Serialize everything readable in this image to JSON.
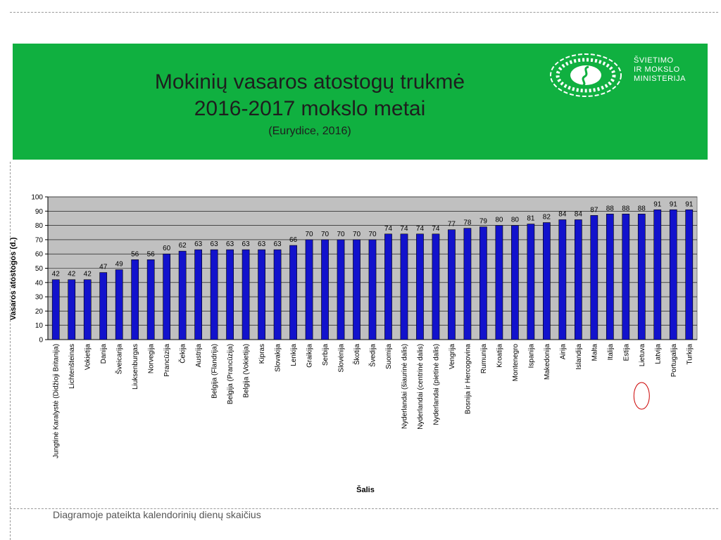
{
  "slide": {
    "title_line1": "Mokinių vasaros atostogų trukmė",
    "title_line2": "2016-2017 mokslo metai",
    "subtitle": "(Eurydice, 2016)",
    "footnote": "Diagramoje  pateikta kalendorinių dienų skaičius",
    "logo_lines": [
      "ŠVIETIMO",
      "IR MOKSLO",
      "MINISTERIJA"
    ],
    "banner_color": "#10b040"
  },
  "chart_data": {
    "type": "bar",
    "title": "",
    "xlabel": "Šalis",
    "ylabel": "Vasaros atostogos (d.)",
    "ylim": [
      0,
      100
    ],
    "yticks": [
      0,
      10,
      20,
      30,
      40,
      50,
      60,
      70,
      80,
      90,
      100
    ],
    "grid": true,
    "bar_color": "#1212cc",
    "plot_background": "#c0c0c0",
    "highlight_category": "Lietuva",
    "highlight_color": "#cc0000",
    "categories": [
      "Jungtinė Karalystė (Didžioji Britanija)",
      "Lichtenšteinas",
      "Vokietija",
      "Danija",
      "Šveicarija",
      "Liuksenburgas",
      "Norvegija",
      "Prancūzija",
      "Čekija",
      "Austrija",
      "Belgija (Flandrija)",
      "Belgija (Prancūzija)",
      "Belgija (Vokietija)",
      "Kipras",
      "Slovakija",
      "Lenkija",
      "Graikija",
      "Serbija",
      "Slovėnija",
      "Škotija",
      "Švedija",
      "Suomija",
      "Nyderlandai (šiaurinė dalis)",
      "Nyderlandai (centrinė dalis)",
      "Nyderlandai (pietinė dalis)",
      "Vengrija",
      "Bosnija ir Hercogovina",
      "Rumunija",
      "Kroatija",
      "Montenegro",
      "Ispanija",
      "Makedonija",
      "Airija",
      "Islandija",
      "Malta",
      "Italija",
      "Estija",
      "Lietuva",
      "Latvija",
      "Portugalija",
      "Turkija"
    ],
    "values": [
      42,
      42,
      42,
      47,
      49,
      56,
      56,
      60,
      62,
      63,
      63,
      63,
      63,
      63,
      63,
      66,
      70,
      70,
      70,
      70,
      70,
      74,
      74,
      74,
      74,
      77,
      78,
      79,
      80,
      80,
      81,
      82,
      84,
      84,
      87,
      88,
      88,
      88,
      91,
      91,
      91
    ]
  }
}
